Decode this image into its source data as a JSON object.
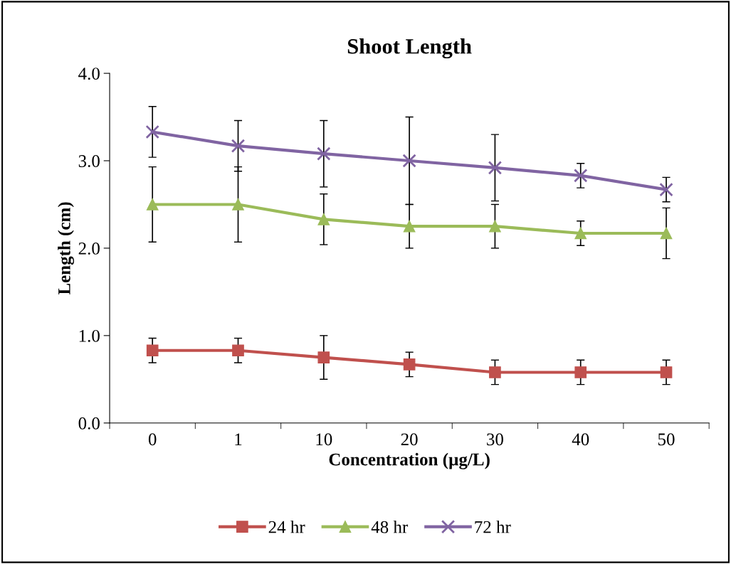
{
  "chart_data": {
    "type": "line",
    "title": "Shoot Length",
    "xlabel": "Concentration (µg/L)",
    "ylabel": "Length (cm)",
    "categories": [
      "0",
      "1",
      "10",
      "20",
      "30",
      "40",
      "50"
    ],
    "ylim": [
      0,
      4
    ],
    "yticks": [
      {
        "value": 0,
        "label": "0.0"
      },
      {
        "value": 1,
        "label": "1.0"
      },
      {
        "value": 2,
        "label": "2.0"
      },
      {
        "value": 3,
        "label": "3.0"
      },
      {
        "value": 4,
        "label": "4.0"
      }
    ],
    "grid": false,
    "legend": "bottom",
    "series": [
      {
        "name": "24 hr",
        "color": "#c0504d",
        "marker": "square",
        "values": [
          0.83,
          0.83,
          0.75,
          0.67,
          0.58,
          0.58,
          0.58
        ],
        "errors": [
          0.14,
          0.14,
          0.25,
          0.14,
          0.14,
          0.14,
          0.14
        ]
      },
      {
        "name": "48 hr",
        "color": "#9bbb59",
        "marker": "triangle",
        "values": [
          2.5,
          2.5,
          2.33,
          2.25,
          2.25,
          2.17,
          2.17
        ],
        "errors": [
          0.43,
          0.43,
          0.29,
          0.25,
          0.25,
          0.14,
          0.29
        ]
      },
      {
        "name": "72 hr",
        "color": "#8064a2",
        "marker": "cross",
        "values": [
          3.33,
          3.17,
          3.08,
          3.0,
          2.92,
          2.83,
          2.67
        ],
        "errors": [
          0.29,
          0.29,
          0.38,
          0.5,
          0.38,
          0.14,
          0.14
        ]
      }
    ]
  }
}
